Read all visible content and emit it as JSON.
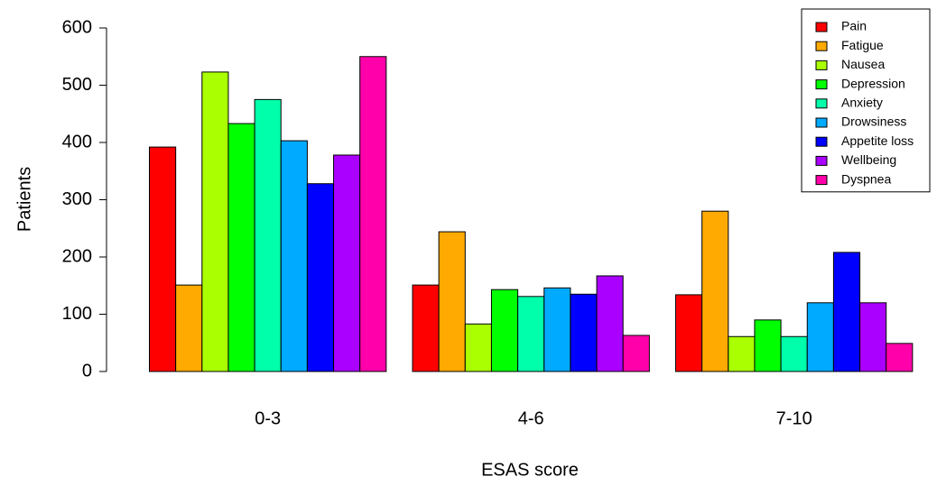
{
  "chart_data": {
    "type": "bar",
    "x_label": "ESAS score",
    "y_label": "Patients",
    "categories": [
      "0-3",
      "4-6",
      "7-10"
    ],
    "series": [
      {
        "name": "Pain",
        "color": "#ff0000",
        "values": [
          392,
          151,
          134
        ]
      },
      {
        "name": "Fatigue",
        "color": "#ffaa00",
        "values": [
          151,
          244,
          280
        ]
      },
      {
        "name": "Nausea",
        "color": "#aaff00",
        "values": [
          523,
          83,
          61
        ]
      },
      {
        "name": "Depression",
        "color": "#00ff00",
        "values": [
          433,
          143,
          90
        ]
      },
      {
        "name": "Anxiety",
        "color": "#00ffaa",
        "values": [
          475,
          131,
          61
        ]
      },
      {
        "name": "Drowsiness",
        "color": "#00aaff",
        "values": [
          403,
          146,
          120
        ]
      },
      {
        "name": "Appetite loss",
        "color": "#0000ff",
        "values": [
          328,
          135,
          208
        ]
      },
      {
        "name": "Wellbeing",
        "color": "#aa00ff",
        "values": [
          378,
          167,
          120
        ]
      },
      {
        "name": "Dyspnea",
        "color": "#ff00aa",
        "values": [
          550,
          63,
          49
        ]
      }
    ],
    "ylim": [
      0,
      600
    ],
    "yticks": [
      0,
      100,
      200,
      300,
      400,
      500,
      600
    ],
    "legend": "top-right"
  }
}
